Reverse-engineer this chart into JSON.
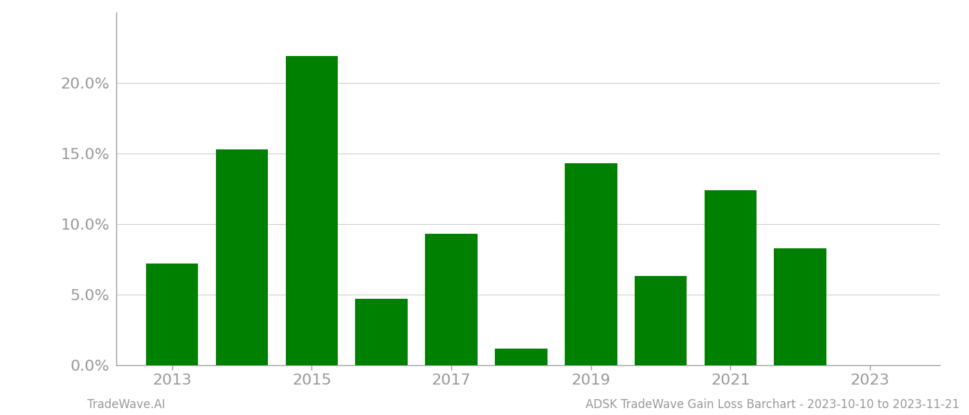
{
  "years": [
    2013,
    2014,
    2015,
    2016,
    2017,
    2018,
    2019,
    2020,
    2021,
    2022,
    2023
  ],
  "values": [
    0.072,
    0.153,
    0.219,
    0.047,
    0.093,
    0.012,
    0.143,
    0.063,
    0.124,
    0.083,
    0.0
  ],
  "bar_color": "#008000",
  "background_color": "#ffffff",
  "grid_color": "#cccccc",
  "ylim": [
    0,
    0.25
  ],
  "yticks": [
    0.0,
    0.05,
    0.1,
    0.15,
    0.2
  ],
  "ytick_labels": [
    "0.0%",
    "5.0%",
    "10.0%",
    "15.0%",
    "20.0%"
  ],
  "xtick_positions": [
    2013,
    2015,
    2017,
    2019,
    2021,
    2023
  ],
  "xtick_labels": [
    "2013",
    "2015",
    "2017",
    "2019",
    "2021",
    "2023"
  ],
  "footer_left": "TradeWave.AI",
  "footer_right": "ADSK TradeWave Gain Loss Barchart - 2023-10-10 to 2023-11-21",
  "bar_width": 0.75,
  "tick_label_color": "#999999",
  "spine_color": "#999999",
  "ytick_fontsize": 16,
  "xtick_fontsize": 16,
  "footer_fontsize": 12
}
